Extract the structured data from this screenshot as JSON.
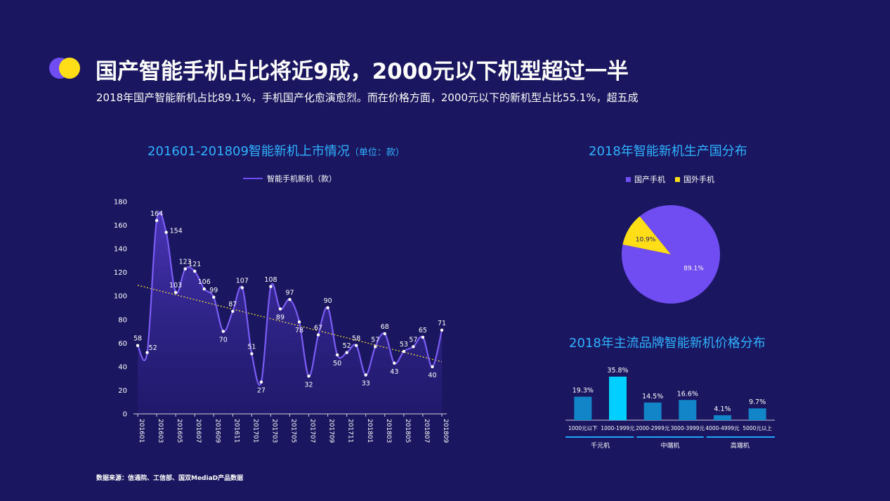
{
  "header": {
    "title": "国产智能手机占比将近9成，2000元以下机型超过一半",
    "subtitle": "2018年国产智能新机占比89.1%，手机国产化愈演愈烈。而在价格方面，2000元以下的新机型占比55.1%，超五成"
  },
  "source": "数据来源：信通院、工信部、国双MediaD产品数据",
  "colors": {
    "background": "#1a1660",
    "accent_purple": "#6f4df2",
    "accent_yellow": "#ffde17",
    "title_blue": "#2fb3ff",
    "bar_blue": "#1285c9",
    "bar_highlight": "#00cfff"
  },
  "chart_data": [
    {
      "type": "line",
      "title": "201601-201809智能新机上市情况",
      "title_unit": "（单位：款）",
      "legend": "智能手机新机（款）",
      "y_ticks": [
        "0",
        "20",
        "40",
        "60",
        "80",
        "100",
        "120",
        "140",
        "160",
        "180"
      ],
      "ylim": [
        0,
        180
      ],
      "x_tick_labels": [
        "201601",
        "201603",
        "201605",
        "201607",
        "201609",
        "201611",
        "201701",
        "201703",
        "201705",
        "201707",
        "201709",
        "201711",
        "201801",
        "201803",
        "201805",
        "201807",
        "201809"
      ],
      "x": [
        "201601",
        "201602",
        "201603",
        "201604",
        "201605",
        "201606",
        "201607",
        "201608",
        "201609",
        "201610",
        "201611",
        "201612",
        "201701",
        "201702",
        "201703",
        "201704",
        "201705",
        "201706",
        "201707",
        "201708",
        "201709",
        "201710",
        "201711",
        "201712",
        "201801",
        "201802",
        "201803",
        "201804",
        "201805",
        "201806",
        "201807",
        "201808",
        "201809"
      ],
      "values": [
        58,
        52,
        164,
        154,
        103,
        123,
        121,
        106,
        99,
        70,
        87,
        107,
        51,
        27,
        108,
        89,
        97,
        78,
        32,
        67,
        90,
        50,
        52,
        58,
        33,
        57,
        68,
        43,
        53,
        57,
        65,
        40,
        71
      ],
      "trendline": true,
      "grid": false
    },
    {
      "type": "pie",
      "title": "2018年智能新机生产国分布",
      "legend_position": "top",
      "slices": [
        {
          "name": "国产手机",
          "value": 89.1,
          "label": "89.1%",
          "color": "#6f4df2"
        },
        {
          "name": "国外手机",
          "value": 10.9,
          "label": "10.9%",
          "color": "#ffde17"
        }
      ]
    },
    {
      "type": "bar",
      "title": "2018年主流品牌智能新机价格分布",
      "categories": [
        "1000元以下",
        "1000-1999元",
        "2000-2999元",
        "3000-3999元",
        "4000-4999元",
        "5000元以上"
      ],
      "values": [
        19.3,
        35.8,
        14.5,
        16.6,
        4.1,
        9.7
      ],
      "value_labels": [
        "19.3%",
        "35.8%",
        "14.5%",
        "16.6%",
        "4.1%",
        "9.7%"
      ],
      "groups": [
        {
          "label": "千元机",
          "span": 2
        },
        {
          "label": "中端机",
          "span": 2
        },
        {
          "label": "高端机",
          "span": 2
        }
      ],
      "highlight_index": 1
    }
  ]
}
